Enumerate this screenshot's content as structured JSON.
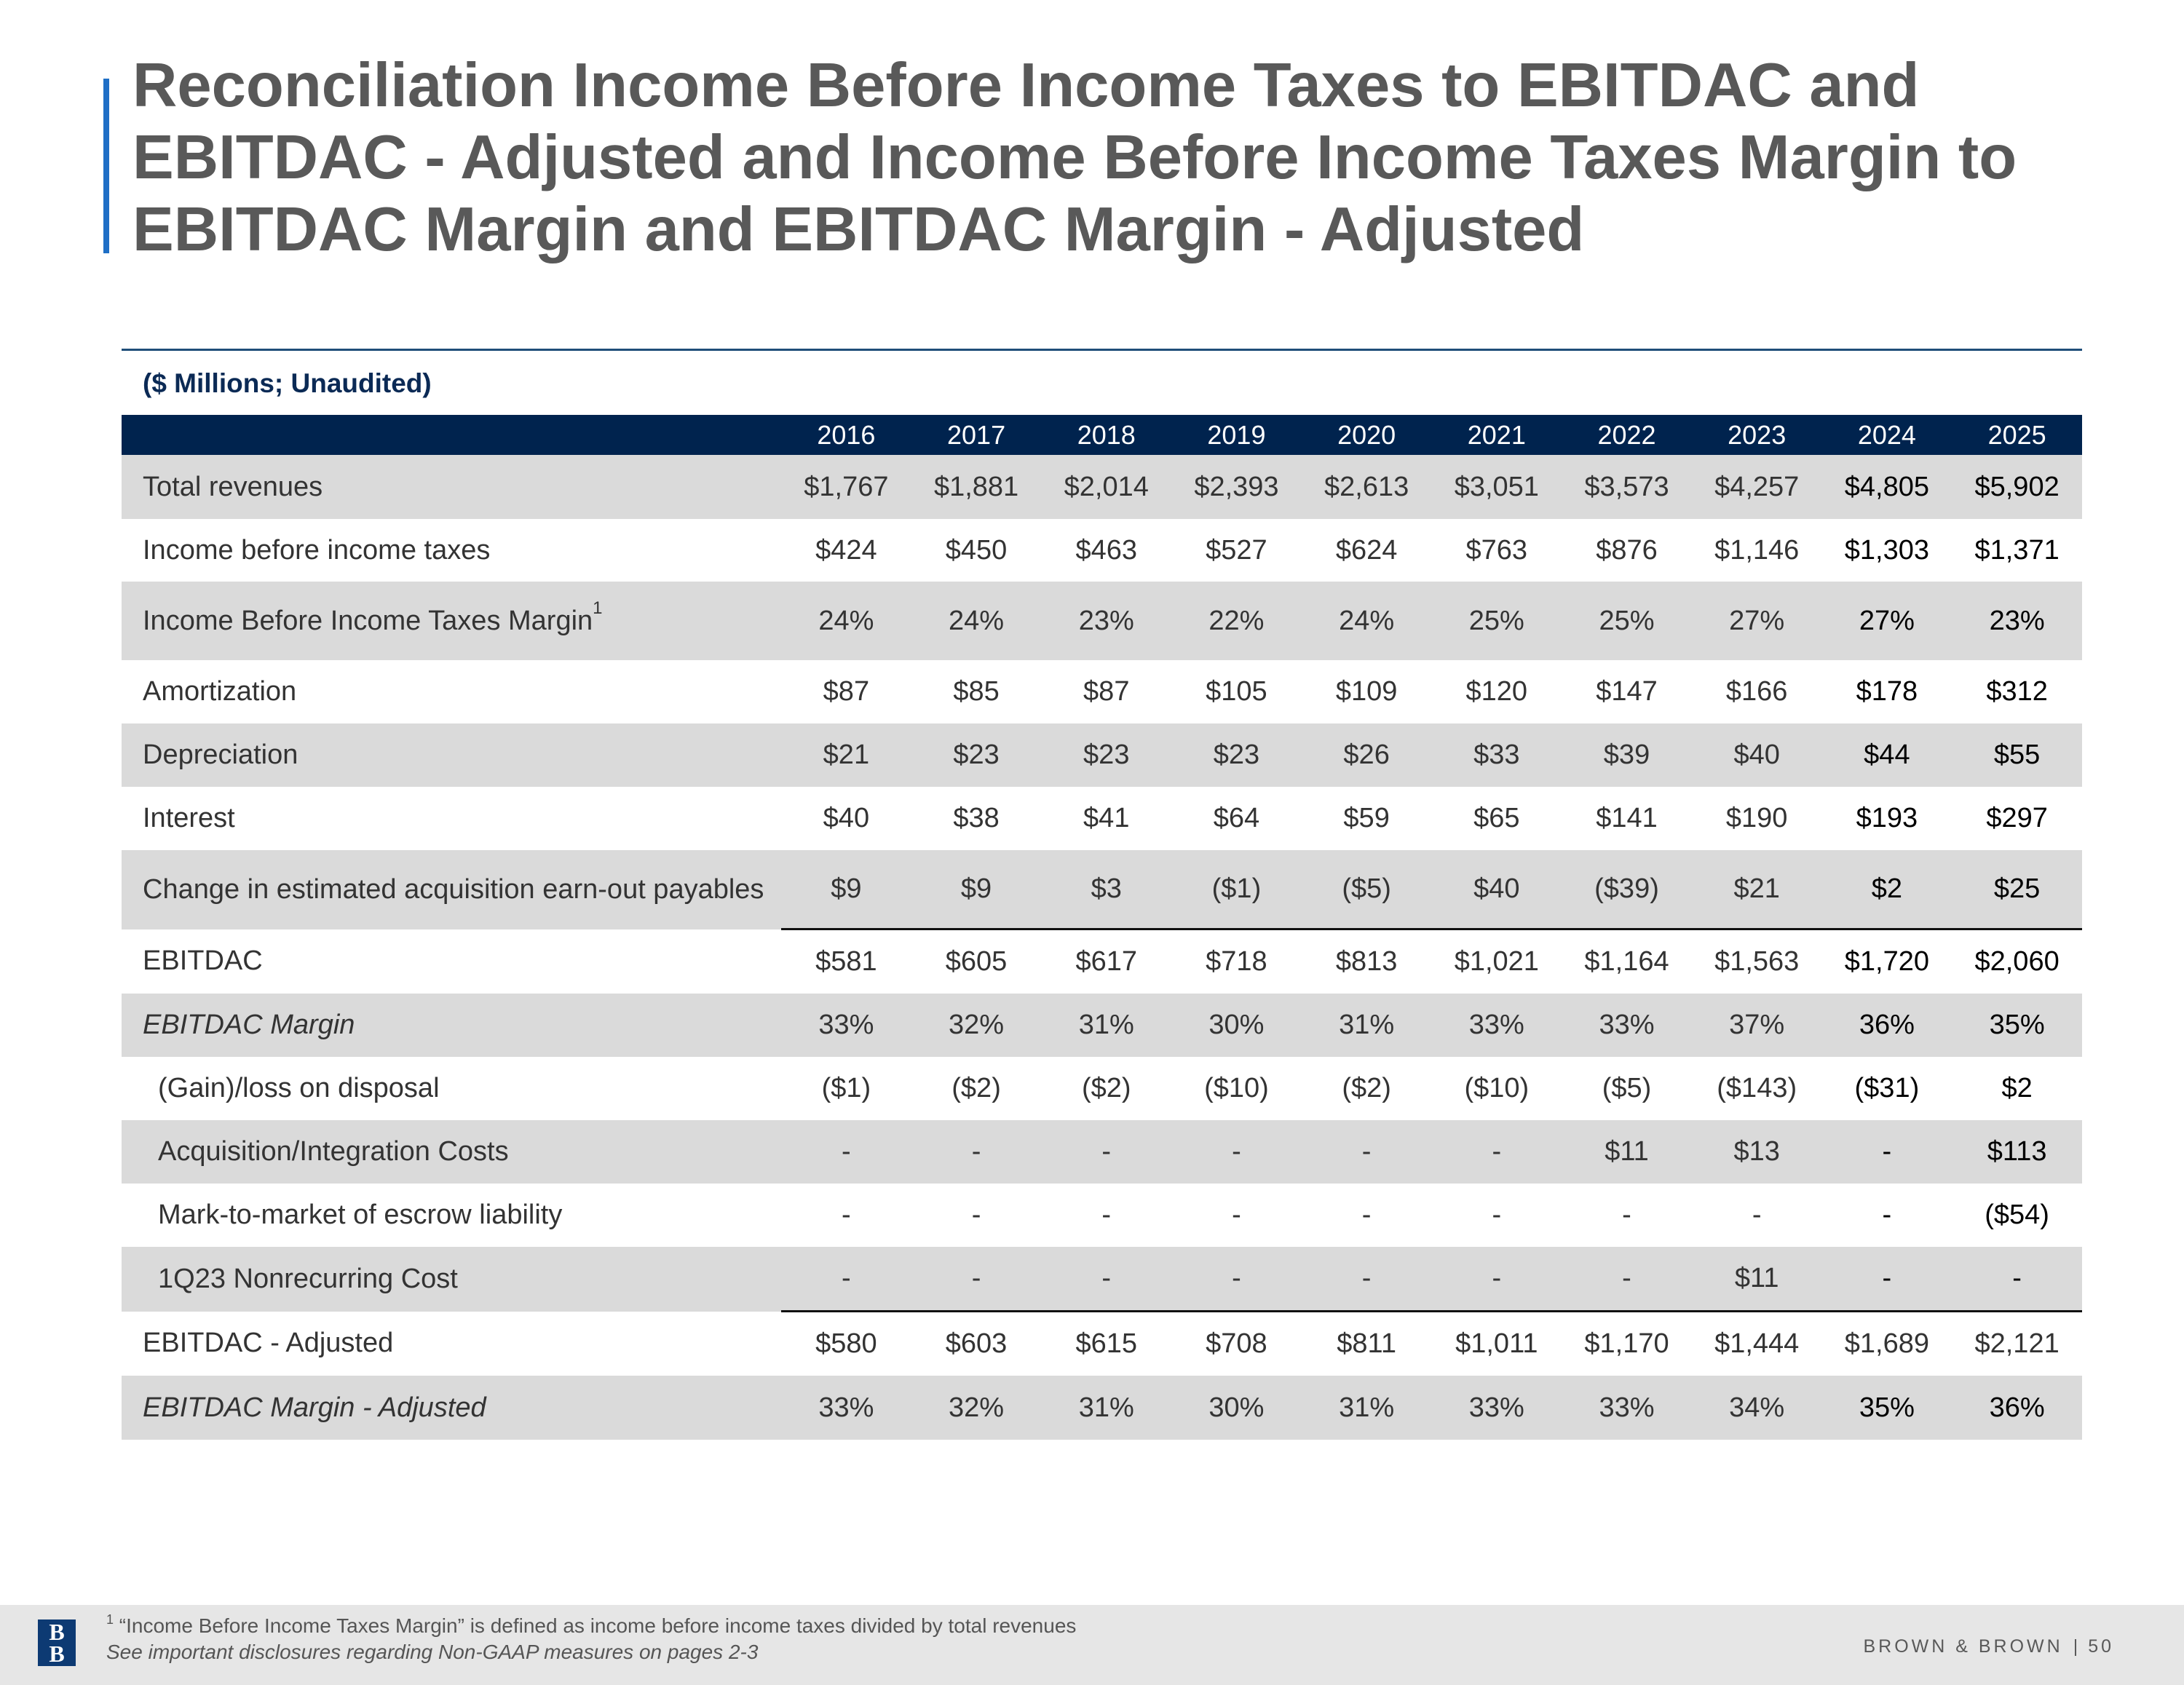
{
  "title_lines": [
    "Reconciliation Income Before Income Taxes to EBITDAC and",
    "EBITDAC - Adjusted and Income Before Income Taxes Margin to",
    "EBITDAC Margin and EBITDAC Margin - Adjusted"
  ],
  "units_label": "($ Millions; Unaudited)",
  "columns": [
    "2016",
    "2017",
    "2018",
    "2019",
    "2020",
    "2021",
    "2022",
    "2023",
    "2024",
    "2025"
  ],
  "rows": [
    {
      "label": "Total revenues",
      "values": [
        "$1,767",
        "$1,881",
        "$2,014",
        "$2,393",
        "$2,613",
        "$3,051",
        "$3,573",
        "$4,257",
        "$4,805",
        "$5,902"
      ]
    },
    {
      "label": "Income before income taxes",
      "values": [
        "$424",
        "$450",
        "$463",
        "$527",
        "$624",
        "$763",
        "$876",
        "$1,146",
        "$1,303",
        "$1,371"
      ]
    },
    {
      "label": "Income Before Income Taxes Margin",
      "footnote_ref": "1",
      "values": [
        "24%",
        "24%",
        "23%",
        "22%",
        "24%",
        "25%",
        "25%",
        "27%",
        "27%",
        "23%"
      ]
    },
    {
      "label": "Amortization",
      "values": [
        "$87",
        "$85",
        "$87",
        "$105",
        "$109",
        "$120",
        "$147",
        "$166",
        "$178",
        "$312"
      ]
    },
    {
      "label": "Depreciation",
      "values": [
        "$21",
        "$23",
        "$23",
        "$23",
        "$26",
        "$33",
        "$39",
        "$40",
        "$44",
        "$55"
      ]
    },
    {
      "label": "Interest",
      "values": [
        "$40",
        "$38",
        "$41",
        "$64",
        "$59",
        "$65",
        "$141",
        "$190",
        "$193",
        "$297"
      ]
    },
    {
      "label": "Change in estimated acquisition earn-out payables",
      "values": [
        "$9",
        "$9",
        "$3",
        "($1)",
        "($5)",
        "$40",
        "($39)",
        "$21",
        "$2",
        "$25"
      ]
    },
    {
      "label": "EBITDAC",
      "values": [
        "$581",
        "$605",
        "$617",
        "$718",
        "$813",
        "$1,021",
        "$1,164",
        "$1,563",
        "$1,720",
        "$2,060"
      ]
    },
    {
      "label": "EBITDAC Margin",
      "values": [
        "33%",
        "32%",
        "31%",
        "30%",
        "31%",
        "33%",
        "33%",
        "37%",
        "36%",
        "35%"
      ]
    },
    {
      "label": "(Gain)/loss on disposal",
      "values": [
        "($1)",
        "($2)",
        "($2)",
        "($10)",
        "($2)",
        "($10)",
        "($5)",
        "($143)",
        "($31)",
        "$2"
      ]
    },
    {
      "label": "Acquisition/Integration Costs",
      "values": [
        "-",
        "-",
        "-",
        "-",
        "-",
        "-",
        "$11",
        "$13",
        "-",
        "$113"
      ]
    },
    {
      "label": "Mark-to-market of escrow liability",
      "values": [
        "-",
        "-",
        "-",
        "-",
        "-",
        "-",
        "-",
        "-",
        "-",
        "($54)"
      ]
    },
    {
      "label": "1Q23 Nonrecurring Cost",
      "values": [
        "-",
        "-",
        "-",
        "-",
        "-",
        "-",
        "-",
        "$11",
        "-",
        "-"
      ]
    },
    {
      "label": "EBITDAC - Adjusted",
      "values": [
        "$580",
        "$603",
        "$615",
        "$708",
        "$811",
        "$1,011",
        "$1,170",
        "$1,444",
        "$1,689",
        "$2,121"
      ]
    },
    {
      "label": "EBITDAC Margin - Adjusted",
      "values": [
        "33%",
        "32%",
        "31%",
        "30%",
        "31%",
        "33%",
        "33%",
        "34%",
        "35%",
        "36%"
      ]
    }
  ],
  "footer": {
    "footnote_marker": "1",
    "footnote_text": "“Income Before Income Taxes Margin” is defined as income before income taxes divided by total revenues",
    "disclosure_text": "See important disclosures regarding Non-GAAP measures on pages 2-3",
    "brand": "BROWN & BROWN",
    "separator": "|",
    "page_number": "50",
    "logo_letters": [
      "B",
      "B"
    ]
  },
  "colors": {
    "accent": "#1f6fc6",
    "header_bg": "#00234e",
    "row_shade": "#dadada",
    "title_text": "#595959",
    "units_text": "#0b2a55"
  }
}
